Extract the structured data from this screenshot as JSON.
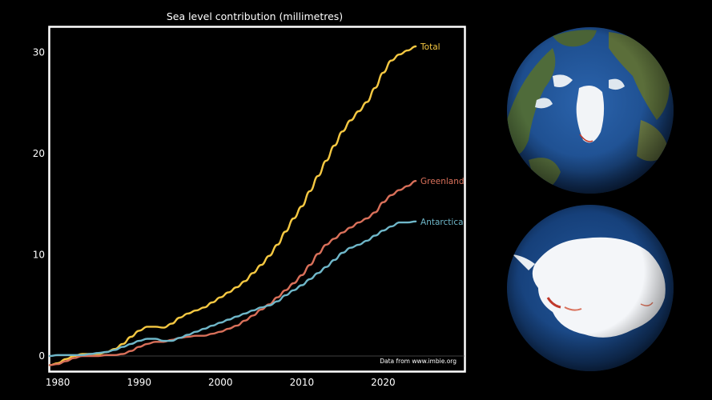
{
  "chart_data": {
    "type": "line",
    "title": "Sea level contribution (millimetres)",
    "xlabel": "",
    "ylabel": "",
    "xlim": [
      1979,
      2030
    ],
    "ylim": [
      -1.5,
      32.5
    ],
    "x_ticks": [
      1980,
      1990,
      2000,
      2010,
      2020
    ],
    "y_ticks": [
      0,
      10,
      20,
      30
    ],
    "grid": false,
    "zero_line": true,
    "source_note": "Data from www.imbie.org",
    "series": [
      {
        "name": "Total",
        "color": "#f5c842",
        "x": [
          1979,
          1980,
          1981,
          1982,
          1983,
          1984,
          1985,
          1986,
          1987,
          1988,
          1989,
          1990,
          1991,
          1992,
          1993,
          1994,
          1995,
          1996,
          1997,
          1998,
          1999,
          2000,
          2001,
          2002,
          2003,
          2004,
          2005,
          2006,
          2007,
          2008,
          2009,
          2010,
          2011,
          2012,
          2013,
          2014,
          2015,
          2016,
          2017,
          2018,
          2019,
          2020,
          2021,
          2022,
          2023,
          2024
        ],
        "values": [
          -0.9,
          -0.7,
          -0.3,
          0.0,
          0.2,
          0.2,
          0.2,
          0.4,
          0.7,
          1.2,
          1.9,
          2.5,
          2.9,
          2.9,
          2.8,
          3.2,
          3.8,
          4.2,
          4.5,
          4.8,
          5.3,
          5.8,
          6.3,
          6.8,
          7.4,
          8.2,
          9.0,
          9.9,
          11.0,
          12.3,
          13.6,
          14.8,
          16.3,
          17.8,
          19.3,
          20.8,
          22.2,
          23.3,
          24.2,
          25.1,
          26.5,
          28.0,
          29.2,
          29.8,
          30.2,
          30.6
        ]
      },
      {
        "name": "Greenland",
        "color": "#d9705a",
        "x": [
          1979,
          1980,
          1981,
          1982,
          1983,
          1984,
          1985,
          1986,
          1987,
          1988,
          1989,
          1990,
          1991,
          1992,
          1993,
          1994,
          1995,
          1996,
          1997,
          1998,
          1999,
          2000,
          2001,
          2002,
          2003,
          2004,
          2005,
          2006,
          2007,
          2008,
          2009,
          2010,
          2011,
          2012,
          2013,
          2014,
          2015,
          2016,
          2017,
          2018,
          2019,
          2020,
          2021,
          2022,
          2023,
          2024
        ],
        "values": [
          -0.9,
          -0.8,
          -0.5,
          -0.2,
          0.0,
          0.0,
          0.0,
          0.1,
          0.1,
          0.2,
          0.5,
          0.9,
          1.2,
          1.4,
          1.4,
          1.6,
          1.8,
          1.9,
          2.0,
          2.0,
          2.2,
          2.4,
          2.7,
          3.0,
          3.5,
          4.0,
          4.6,
          5.1,
          5.8,
          6.5,
          7.2,
          8.0,
          9.0,
          10.1,
          11.0,
          11.6,
          12.2,
          12.7,
          13.2,
          13.6,
          14.2,
          15.2,
          15.9,
          16.4,
          16.8,
          17.3
        ]
      },
      {
        "name": "Antarctica",
        "color": "#6fb7c9",
        "x": [
          1979,
          1980,
          1981,
          1982,
          1983,
          1984,
          1985,
          1986,
          1987,
          1988,
          1989,
          1990,
          1991,
          1992,
          1993,
          1994,
          1995,
          1996,
          1997,
          1998,
          1999,
          2000,
          2001,
          2002,
          2003,
          2004,
          2005,
          2006,
          2007,
          2008,
          2009,
          2010,
          2011,
          2012,
          2013,
          2014,
          2015,
          2016,
          2017,
          2018,
          2019,
          2020,
          2021,
          2022,
          2023,
          2024
        ],
        "values": [
          0.0,
          0.1,
          0.1,
          0.1,
          0.1,
          0.2,
          0.3,
          0.4,
          0.6,
          0.9,
          1.2,
          1.5,
          1.7,
          1.7,
          1.5,
          1.5,
          1.8,
          2.1,
          2.4,
          2.7,
          3.0,
          3.3,
          3.6,
          3.9,
          4.2,
          4.5,
          4.8,
          5.0,
          5.4,
          6.0,
          6.5,
          7.0,
          7.6,
          8.2,
          8.8,
          9.5,
          10.2,
          10.7,
          11.0,
          11.4,
          11.9,
          12.4,
          12.8,
          13.2,
          13.2,
          13.3
        ]
      }
    ]
  },
  "globes": [
    {
      "name": "Arctic / Greenland view",
      "ocean_color": "#1f4f8f",
      "ice_color": "#f2f4f7"
    },
    {
      "name": "Antarctica view",
      "ocean_color": "#1a4479",
      "ice_color": "#f4f6f9"
    }
  ]
}
